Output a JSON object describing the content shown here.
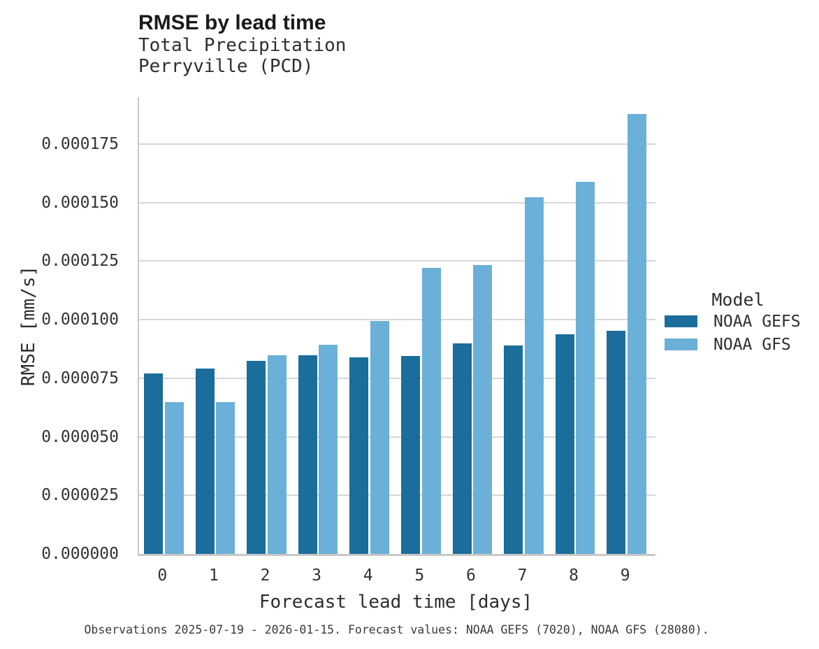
{
  "figure": {
    "title": "RMSE by lead time",
    "subtitle_line1": "Total Precipitation",
    "subtitle_line2": "Perryville (PCD)",
    "caption": "Observations 2025-07-19 - 2026-01-15. Forecast values: NOAA GEFS (7020), NOAA GFS (28080)."
  },
  "axes": {
    "x_label": "Forecast lead time [days]",
    "y_label": "RMSE [mm/s]",
    "x_tick_labels": [
      "0",
      "1",
      "2",
      "3",
      "4",
      "5",
      "6",
      "7",
      "8",
      "9"
    ],
    "y_tick_labels": [
      "0.000000",
      "0.000025",
      "0.000050",
      "0.000075",
      "0.000100",
      "0.000125",
      "0.000150",
      "0.000175"
    ]
  },
  "legend": {
    "title": "Model",
    "entries": [
      {
        "label": "NOAA GEFS",
        "color": "#1b6d9c"
      },
      {
        "label": "NOAA GFS",
        "color": "#6bb0d8"
      }
    ]
  },
  "chart_data": {
    "type": "bar",
    "title": "RMSE by lead time",
    "subtitle": "Total Precipitation / Perryville (PCD)",
    "categories": [
      0,
      1,
      2,
      3,
      4,
      5,
      6,
      7,
      8,
      9
    ],
    "series": [
      {
        "name": "NOAA GEFS",
        "color": "#1b6d9c",
        "values": [
          7.7e-05,
          7.9e-05,
          8.25e-05,
          8.48e-05,
          8.38e-05,
          8.45e-05,
          8.98e-05,
          8.89e-05,
          9.38e-05,
          9.52e-05
        ]
      },
      {
        "name": "NOAA GFS",
        "color": "#6bb0d8",
        "values": [
          6.49e-05,
          6.49e-05,
          8.47e-05,
          8.93e-05,
          9.95e-05,
          0.0001221,
          0.0001233,
          0.0001524,
          0.0001589,
          0.0001877
        ]
      }
    ],
    "xlabel": "Forecast lead time [days]",
    "ylabel": "RMSE [mm/s]",
    "ylim": [
      0,
      0.000195
    ],
    "yticks": [
      0,
      2.5e-05,
      5e-05,
      7.5e-05,
      0.0001,
      0.000125,
      0.00015,
      0.000175
    ],
    "grid": true,
    "legend_title": "Model",
    "legend_position": "right"
  }
}
